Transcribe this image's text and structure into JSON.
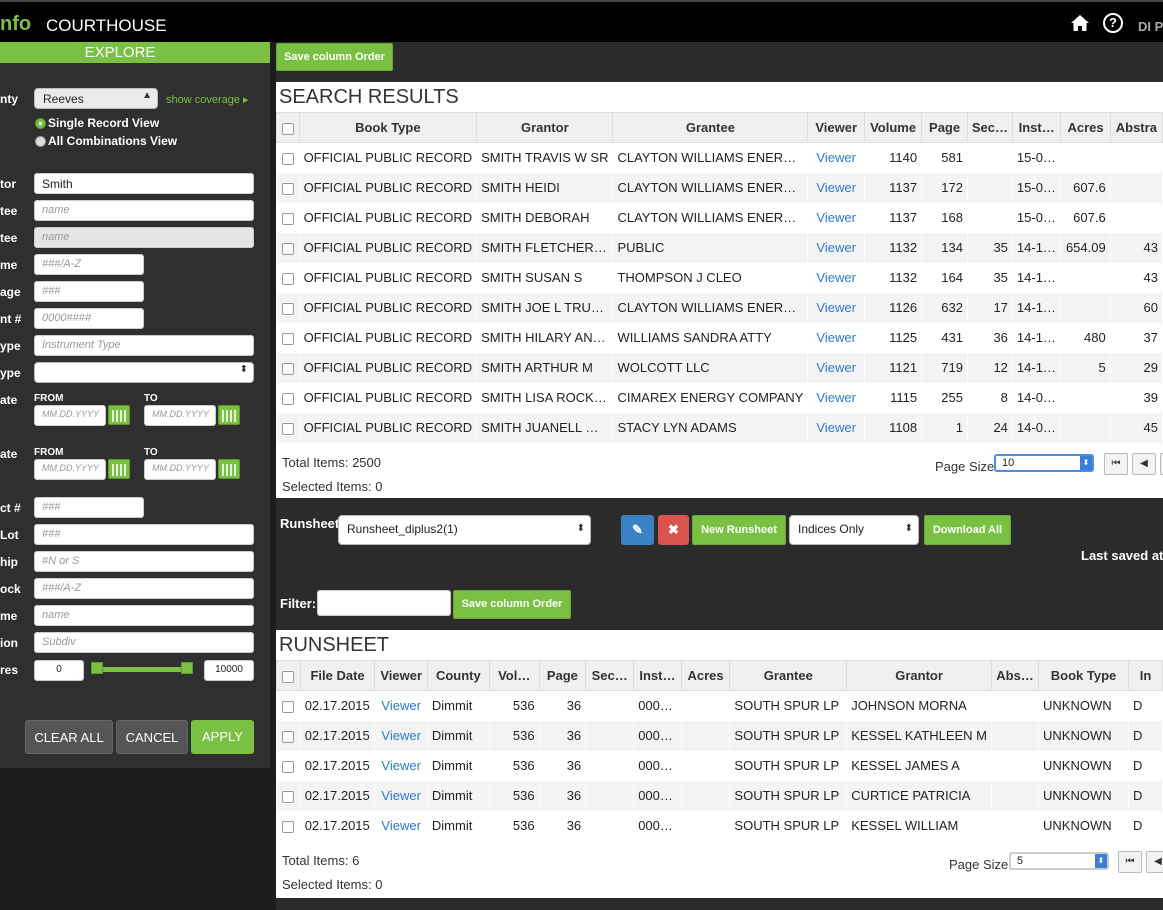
{
  "header": {
    "brand": "nfo",
    "title": "COURTHOUSE",
    "user": "DI P"
  },
  "sidebar": {
    "title": "EXPLORE",
    "county_label": "nty",
    "county_value": "Reeves",
    "show_coverage": "show coverage",
    "view_single": "Single Record View",
    "view_all": "All Combinations View",
    "grantor_label": "tor",
    "grantor_value": "Smith",
    "grantee_label": "tee",
    "grantee_placeholder": "name",
    "grantee2_label": "tee",
    "grantee2_placeholder": "name",
    "volume_label": "me",
    "volume_placeholder": "###/A-Z",
    "page_label": "age",
    "page_placeholder": "###",
    "instrument_label": "nt #",
    "instrument_placeholder": "0000####",
    "itype_label": "ype",
    "itype_placeholder": "Instrument Type",
    "btype_label": "ype",
    "date1_label": "ate",
    "date2_label": "ate",
    "from_label": "FROM",
    "to_label": "TO",
    "date_placeholder": "MM.DD.YYYY",
    "tract_label": "ct #",
    "tract_placeholder": "###",
    "lot_label": "Lot",
    "lot_placeholder": "###",
    "township_label": "hip",
    "township_placeholder": "#N or S",
    "block_label": "ock",
    "block_placeholder": "###/A-Z",
    "name_label": "me",
    "name_placeholder": "name",
    "subdiv_label": "ion",
    "subdiv_placeholder": "Subdiv",
    "acres_label": "res",
    "acres_min": "0",
    "acres_max": "10000",
    "acres_range_fraction": [
      0,
      1
    ],
    "clear_all": "CLEAR ALL",
    "cancel": "CANCEL",
    "apply": "APPLY"
  },
  "main": {
    "save_column_order": "Save column Order",
    "search_title": "SEARCH RESULTS",
    "search_columns": [
      "Book Type",
      "Grantor",
      "Grantee",
      "Viewer",
      "Volume",
      "Page",
      "Sec…",
      "Inst…",
      "Acres",
      "Abstra"
    ],
    "search_rows": [
      [
        "OFFICIAL PUBLIC RECORD",
        "SMITH TRAVIS W SR",
        "CLAYTON WILLIAMS ENER…",
        "Viewer",
        "1140",
        "581",
        "",
        "15-0…",
        "",
        ""
      ],
      [
        "OFFICIAL PUBLIC RECORD",
        "SMITH HEIDI",
        "CLAYTON WILLIAMS ENER…",
        "Viewer",
        "1137",
        "172",
        "",
        "15-0…",
        "607.6",
        ""
      ],
      [
        "OFFICIAL PUBLIC RECORD",
        "SMITH DEBORAH",
        "CLAYTON WILLIAMS ENER…",
        "Viewer",
        "1137",
        "168",
        "",
        "15-0…",
        "607.6",
        ""
      ],
      [
        "OFFICIAL PUBLIC RECORD",
        "SMITH FLETCHER…",
        "PUBLIC",
        "Viewer",
        "1132",
        "134",
        "35",
        "14-1…",
        "654.09",
        "43"
      ],
      [
        "OFFICIAL PUBLIC RECORD",
        "SMITH SUSAN S",
        "THOMPSON J CLEO",
        "Viewer",
        "1132",
        "164",
        "35",
        "14-1…",
        "",
        "43"
      ],
      [
        "OFFICIAL PUBLIC RECORD",
        "SMITH JOE L TRU…",
        "CLAYTON WILLIAMS ENER…",
        "Viewer",
        "1126",
        "632",
        "17",
        "14-1…",
        "",
        "60"
      ],
      [
        "OFFICIAL PUBLIC RECORD",
        "SMITH HILARY AN…",
        "WILLIAMS SANDRA ATTY",
        "Viewer",
        "1125",
        "431",
        "36",
        "14-1…",
        "480",
        "37"
      ],
      [
        "OFFICIAL PUBLIC RECORD",
        "SMITH ARTHUR M",
        "WOLCOTT LLC",
        "Viewer",
        "1121",
        "719",
        "12",
        "14-1…",
        "5",
        "29"
      ],
      [
        "OFFICIAL PUBLIC RECORD",
        "SMITH LISA ROCK…",
        "CIMAREX ENERGY COMPANY",
        "Viewer",
        "1115",
        "255",
        "8",
        "14-0…",
        "",
        "39"
      ],
      [
        "OFFICIAL PUBLIC RECORD",
        "SMITH JUANELL …",
        "STACY LYN ADAMS",
        "Viewer",
        "1108",
        "1",
        "24",
        "14-0…",
        "",
        "45"
      ]
    ],
    "total_items": "Total Items: 2500",
    "selected_items": "Selected Items: 0",
    "page_size_label": "Page Size:",
    "page_size_value": "10",
    "runsheet_label": "Runsheet:",
    "runsheet_value": "Runsheet_diplus2(1)",
    "edit_icon": "pencil-icon",
    "delete_icon": "x-icon",
    "new_runsheet": "New Runsheet",
    "indices_value": "Indices Only",
    "download_all": "Download All",
    "last_saved": "Last saved at:",
    "filter_label": "Filter:",
    "runsheet_title": "RUNSHEET",
    "runsheet_columns": [
      "File Date",
      "Viewer",
      "County",
      "Vol…",
      "Page",
      "Sec…",
      "Inst…",
      "Acres",
      "Grantee",
      "Grantor",
      "Abs…",
      "Book Type",
      "In"
    ],
    "runsheet_rows": [
      [
        "02.17.2015",
        "Viewer",
        "Dimmit",
        "536",
        "36",
        "",
        "000…",
        "",
        "SOUTH SPUR LP",
        "JOHNSON MORNA",
        "",
        "UNKNOWN",
        "D"
      ],
      [
        "02.17.2015",
        "Viewer",
        "Dimmit",
        "536",
        "36",
        "",
        "000…",
        "",
        "SOUTH SPUR LP",
        "KESSEL KATHLEEN M",
        "",
        "UNKNOWN",
        "D"
      ],
      [
        "02.17.2015",
        "Viewer",
        "Dimmit",
        "536",
        "36",
        "",
        "000…",
        "",
        "SOUTH SPUR LP",
        "KESSEL JAMES A",
        "",
        "UNKNOWN",
        "D"
      ],
      [
        "02.17.2015",
        "Viewer",
        "Dimmit",
        "536",
        "36",
        "",
        "000…",
        "",
        "SOUTH SPUR LP",
        "CURTICE PATRICIA",
        "",
        "UNKNOWN",
        "D"
      ],
      [
        "02.17.2015",
        "Viewer",
        "Dimmit",
        "536",
        "36",
        "",
        "000…",
        "",
        "SOUTH SPUR LP",
        "KESSEL WILLIAM",
        "",
        "UNKNOWN",
        "D"
      ]
    ],
    "rs_total_items": "Total Items: 6",
    "rs_selected_items": "Selected Items: 0",
    "rs_page_size_value": "5"
  },
  "colors": {
    "accent": "#7ac143",
    "link": "#2a7ad0",
    "edit_button": "#3b82c4",
    "delete_button": "#d9534f"
  }
}
